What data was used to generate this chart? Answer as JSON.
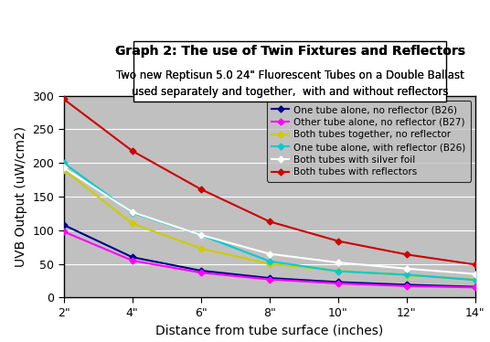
{
  "title_line1": "Graph 2: The use of Twin Fixtures and Reflectors",
  "title_line2a": "Two new Reptisun 5.0 24\" Fluorescent Tubes on a Double Ballast",
  "title_line2b": "used separately and together,  with and without reflectors",
  "xlabel": "Distance from tube surface (inches)",
  "ylabel": "UVB Output (uW/cm2)",
  "x_labels": [
    "2\"",
    "4\"",
    "6\"",
    "8\"",
    "10\"",
    "12\"",
    "14\""
  ],
  "x_values": [
    2,
    4,
    6,
    8,
    10,
    12,
    14
  ],
  "series": [
    {
      "label": "One tube alone, no reflector (B26)",
      "color": "#00008B",
      "values": [
        108,
        60,
        40,
        29,
        23,
        19,
        16
      ]
    },
    {
      "label": "Other tube alone, no reflector (B27)",
      "color": "#FF00FF",
      "values": [
        98,
        55,
        37,
        27,
        21,
        17,
        15
      ]
    },
    {
      "label": "Both tubes together, no reflector",
      "color": "#CCCC00",
      "values": [
        190,
        110,
        73,
        50,
        40,
        33,
        27
      ]
    },
    {
      "label": "One tube alone, with reflector (B26)",
      "color": "#00CCCC",
      "values": [
        200,
        126,
        93,
        54,
        39,
        34,
        26
      ]
    },
    {
      "label": "Both tubes with silver foil",
      "color": "#FFFFFF",
      "values": [
        193,
        127,
        93,
        65,
        52,
        43,
        35
      ]
    },
    {
      "label": "Both tubes with reflectors",
      "color": "#CC0000",
      "values": [
        295,
        218,
        161,
        113,
        84,
        64,
        49
      ]
    }
  ],
  "ylim": [
    0,
    300
  ],
  "yticks": [
    0,
    50,
    100,
    150,
    200,
    250,
    300
  ],
  "fig_bg_color": "#FFFFFF",
  "plot_bg_color": "#C0C0C0",
  "grid_color": "#FFFFFF",
  "border_color": "#000000",
  "legend_bg": "#C0C0C0"
}
